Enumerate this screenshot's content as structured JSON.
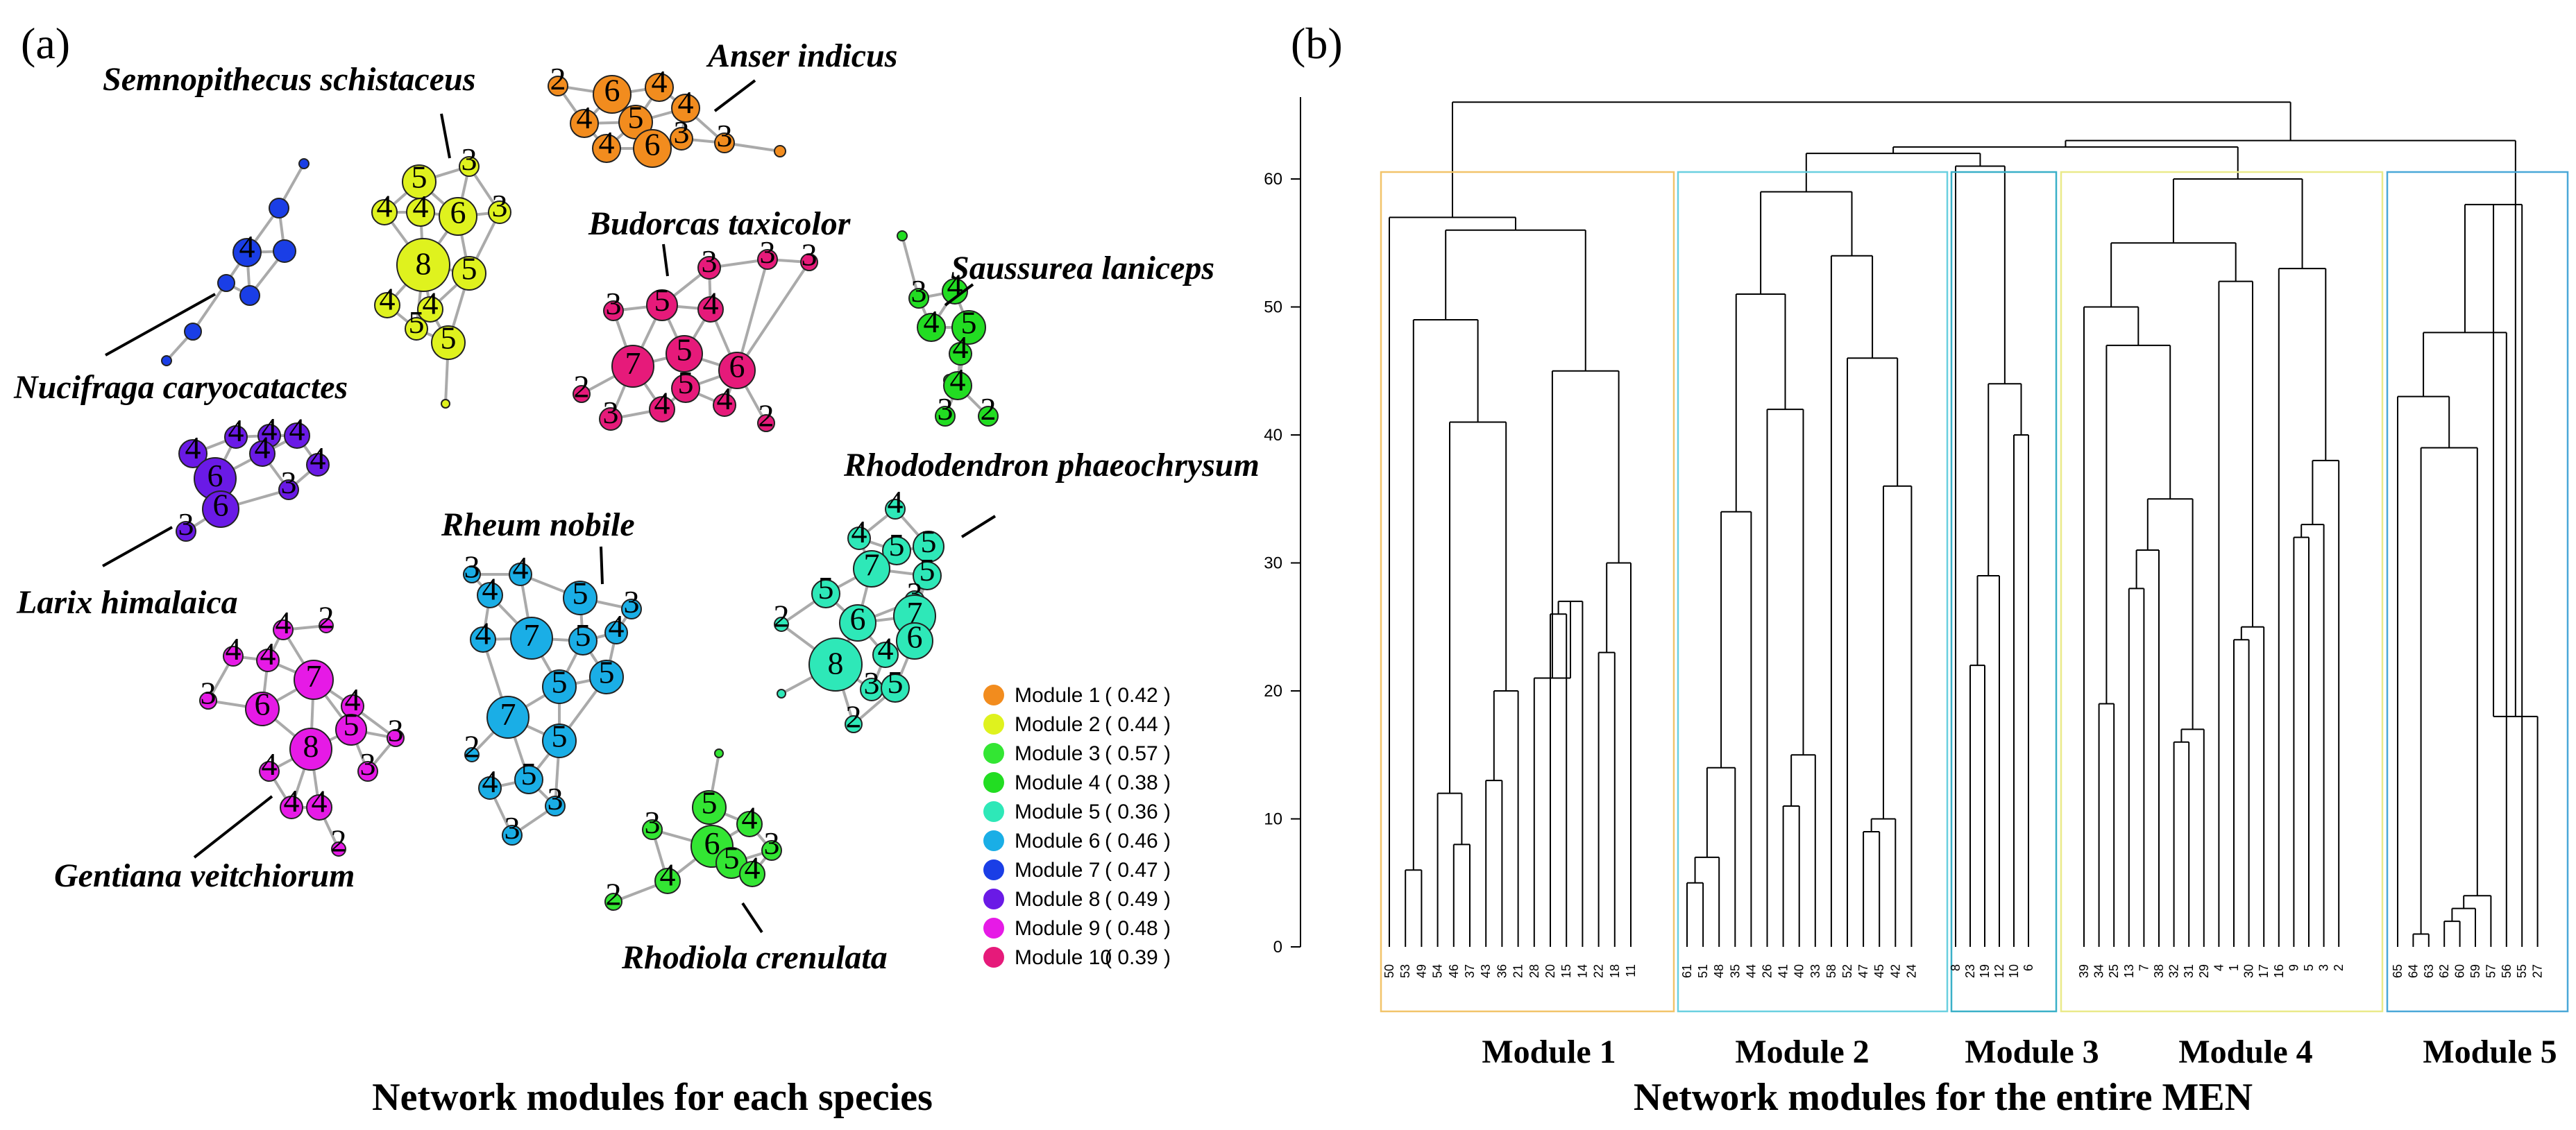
{
  "panel_a": {
    "label": "(a)",
    "caption": "Network modules for each species",
    "species": [
      "Semnopithecus schistaceus",
      "Anser indicus",
      "Budorcas taxicolor",
      "Saussurea laniceps",
      "Nucifraga caryocatactes",
      "Larix himalaica",
      "Rheum nobile",
      "Rhododendron phaeochrysum",
      "Gentiana veitchiorum",
      "Rhodiola crenulata"
    ],
    "legend": [
      {
        "name": "Module 1",
        "value": "( 0.42 )",
        "color": "#f28c1e"
      },
      {
        "name": "Module 2",
        "value": "( 0.44 )",
        "color": "#dff21e"
      },
      {
        "name": "Module 3",
        "value": "( 0.57 )",
        "color": "#33e633"
      },
      {
        "name": "Module 4",
        "value": "( 0.38 )",
        "color": "#22dd22"
      },
      {
        "name": "Module 5",
        "value": "( 0.36 )",
        "color": "#2ee8b8"
      },
      {
        "name": "Module 6",
        "value": "( 0.46 )",
        "color": "#1aaee6"
      },
      {
        "name": "Module 7",
        "value": "( 0.47 )",
        "color": "#1a3ee6"
      },
      {
        "name": "Module 8",
        "value": "( 0.49 )",
        "color": "#6a1ae6"
      },
      {
        "name": "Module 9",
        "value": "( 0.48 )",
        "color": "#e61ae6"
      },
      {
        "name": "Module 10",
        "value": "( 0.39 )",
        "color": "#e61a7a"
      }
    ]
  },
  "panel_b": {
    "label": "(b)",
    "caption": "Network modules for the entire MEN",
    "y_ticks": [
      "0",
      "10",
      "20",
      "30",
      "40",
      "50",
      "60"
    ],
    "modules": [
      "Module 1",
      "Module 2",
      "Module 3",
      "Module 4",
      "Module 5"
    ],
    "module_colors": [
      "#f2c46a",
      "#6ad0e0",
      "#3ab0c8",
      "#eaea8a",
      "#4aa8d8"
    ],
    "leaves": [
      [
        "50",
        "53",
        "49",
        "54",
        "46",
        "37",
        "43",
        "36",
        "21",
        "28",
        "20",
        "15",
        "14",
        "22",
        "18",
        "11"
      ],
      [
        "61",
        "51",
        "48",
        "35",
        "44",
        "26",
        "41",
        "40",
        "33",
        "58",
        "52",
        "47",
        "45",
        "42",
        "24"
      ],
      [
        "8",
        "23",
        "19",
        "12",
        "10",
        "6"
      ],
      [
        "39",
        "34",
        "25",
        "13",
        "7",
        "38",
        "32",
        "31",
        "29",
        "4",
        "1",
        "30",
        "17",
        "16",
        "9",
        "5",
        "3",
        "2"
      ],
      [
        "65",
        "64",
        "63",
        "62",
        "60",
        "59",
        "57",
        "56",
        "55",
        "27"
      ]
    ]
  }
}
